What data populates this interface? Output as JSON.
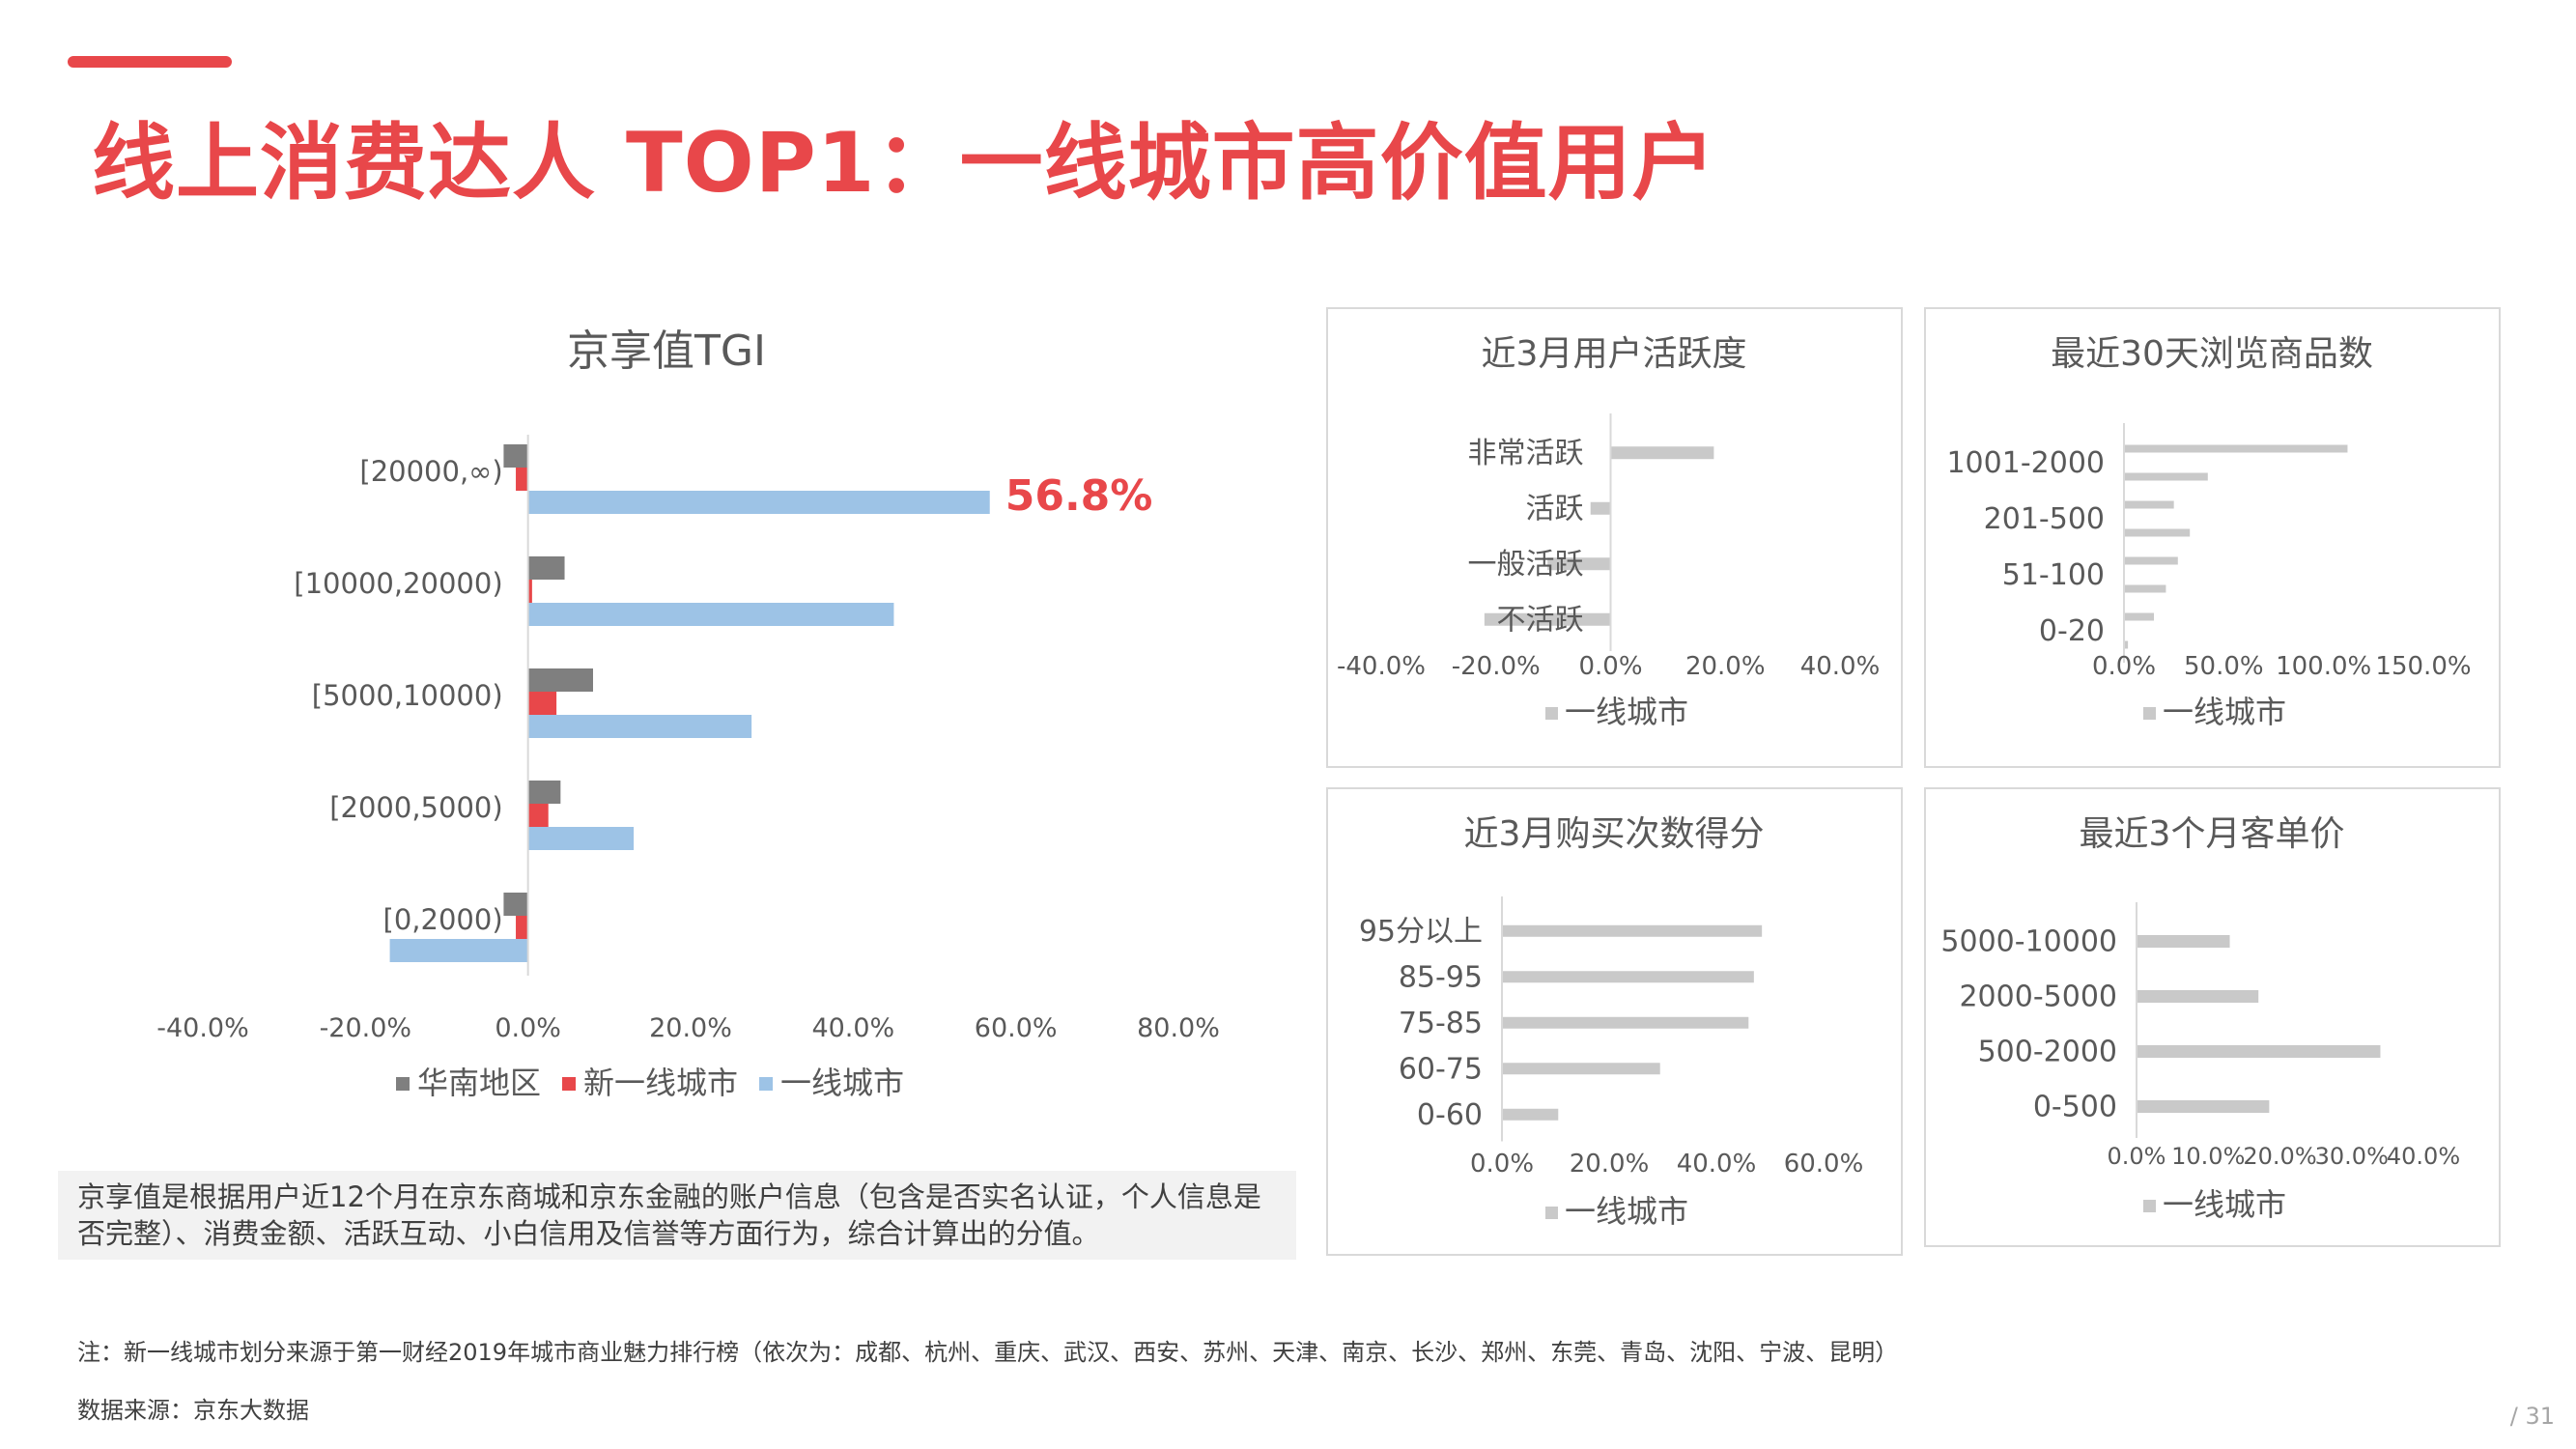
{
  "title": "线上消费达人 TOP1：一线城市高价值用户",
  "colors": {
    "accent": "#E8474A",
    "huanan": "#7F7F7F",
    "new_tier1": "#E8474A",
    "tier1": "#9DC3E6",
    "grey_bar": "#C9C9C9"
  },
  "main_chart": {
    "type": "bar",
    "title": "京享值TGI",
    "categories": [
      "[20000,∞)",
      "[10000,20000)",
      "[5000,10000)",
      "[2000,5000)",
      "[0,2000)"
    ],
    "series": [
      {
        "name": "华南地区",
        "color": "#7F7F7F",
        "values": [
          -3.0,
          4.5,
          8.0,
          4.0,
          -3.0
        ]
      },
      {
        "name": "新一线城市",
        "color": "#E8474A",
        "values": [
          -1.5,
          0.5,
          3.5,
          2.5,
          -1.5
        ]
      },
      {
        "name": "一线城市",
        "color": "#9DC3E6",
        "values": [
          56.8,
          45.0,
          27.5,
          13.0,
          -17.0
        ]
      }
    ],
    "xticks": [
      "-40.0%",
      "-20.0%",
      "0.0%",
      "20.0%",
      "40.0%",
      "60.0%",
      "80.0%"
    ],
    "xlim": [
      -40,
      80
    ],
    "annotation": "56.8%"
  },
  "small_charts": [
    {
      "type": "bar",
      "title": "近3月用户活跃度",
      "categories": [
        "非常活跃",
        "活跃",
        "一般活跃",
        "不活跃"
      ],
      "values": [
        18.0,
        -3.5,
        -11.0,
        -22.0
      ],
      "xticks": [
        "-40.0%",
        "-20.0%",
        "0.0%",
        "20.0%",
        "40.0%"
      ],
      "xlim": [
        -40,
        40
      ],
      "legend": "一线城市"
    },
    {
      "type": "bar",
      "title": "最近30天浏览商品数",
      "categories": [
        "1001-2000",
        "201-500",
        "51-100",
        "0-20"
      ],
      "values": [
        112.0,
        42.0,
        25.0,
        33.0,
        27.0,
        21.0,
        15.0,
        2.0
      ],
      "xticks": [
        "0.0%",
        "50.0%",
        "100.0%",
        "150.0%"
      ],
      "xlim": [
        0,
        150
      ],
      "legend": "一线城市"
    },
    {
      "type": "bar",
      "title": "近3月购买次数得分",
      "categories": [
        "95分以上",
        "85-95",
        "75-85",
        "60-75",
        "0-60"
      ],
      "values": [
        48.5,
        47.0,
        46.0,
        29.5,
        10.5
      ],
      "xticks": [
        "0.0%",
        "20.0%",
        "40.0%",
        "60.0%"
      ],
      "xlim": [
        0,
        60
      ],
      "legend": "一线城市"
    },
    {
      "type": "bar",
      "title": "最近3个月客单价",
      "categories": [
        "5000-10000",
        "2000-5000",
        "500-2000",
        "0-500"
      ],
      "values": [
        13.0,
        17.0,
        34.0,
        18.5
      ],
      "xticks": [
        "0.0%",
        "10.0%",
        "20.0%",
        "30.0%",
        "40.0%"
      ],
      "xlim": [
        0,
        40
      ],
      "legend": "一线城市"
    }
  ],
  "note": "京享值是根据用户近12个月在京东商城和京东金融的账户信息（包含是否实名认证，个人信息是否完整）、消费金额、活跃互动、小白信用及信誉等方面行为，综合计算出的分值。",
  "footnote": "注：新一线城市划分来源于第一财经2019年城市商业魅力排行榜（依次为：成都、杭州、重庆、武汉、西安、苏州、天津、南京、长沙、郑州、东莞、青岛、沈阳、宁波、昆明）",
  "source": "数据来源：京东大数据",
  "page_number": "/ 31"
}
